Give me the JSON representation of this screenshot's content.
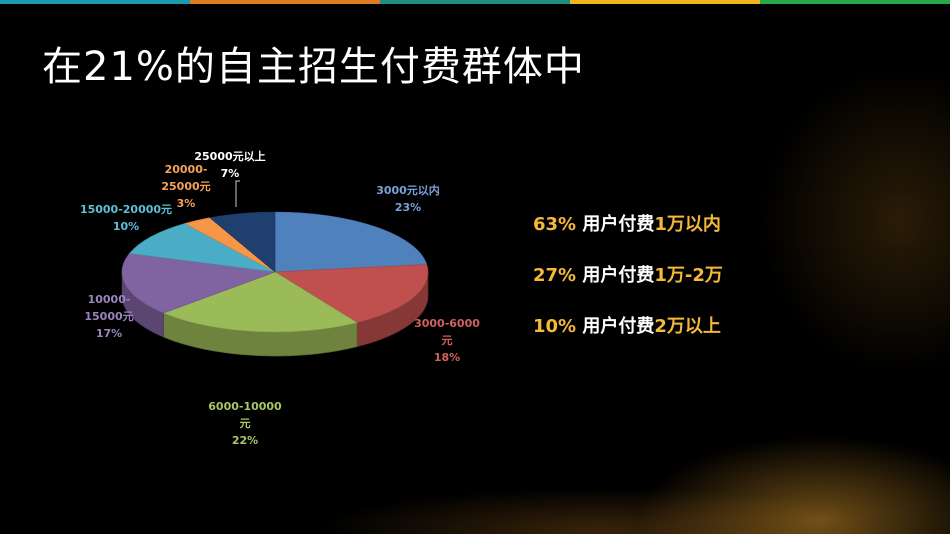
{
  "topbar_colors": [
    "#1b9bb0",
    "#e07b22",
    "#1e8f7f",
    "#f1b51c",
    "#27a84a"
  ],
  "title": "在21%的自主招生付费群体中",
  "chart_data": {
    "type": "pie",
    "title": "",
    "slices": [
      {
        "label_lines": [
          "3000元以内"
        ],
        "pct_label": "23%",
        "value": 23,
        "color": "#4f81bd",
        "label_color": "#7aa2d8"
      },
      {
        "label_lines": [
          "3000-6000",
          "元"
        ],
        "pct_label": "18%",
        "value": 18,
        "color": "#c0504d",
        "label_color": "#d0615e"
      },
      {
        "label_lines": [
          "6000-10000",
          "元"
        ],
        "pct_label": "22%",
        "value": 22,
        "color": "#9bbb59",
        "label_color": "#a9c766"
      },
      {
        "label_lines": [
          "10000-",
          "15000元"
        ],
        "pct_label": "17%",
        "value": 17,
        "color": "#8064a2",
        "label_color": "#9b84bd"
      },
      {
        "label_lines": [
          "15000-20000元"
        ],
        "pct_label": "10%",
        "value": 10,
        "color": "#4bacc6",
        "label_color": "#5fbfd6"
      },
      {
        "label_lines": [
          "20000-",
          "25000元"
        ],
        "pct_label": "3%",
        "value": 3,
        "color": "#f79646",
        "label_color": "#f7a35c"
      },
      {
        "label_lines": [
          "25000元以上"
        ],
        "pct_label": "7%",
        "value": 7,
        "color": "#1f3f6e",
        "label_color": "#ffffff"
      }
    ]
  },
  "summary": [
    {
      "pct": "63%",
      "prefix": " 用户付费",
      "highlight": "1万以内"
    },
    {
      "pct": "27%",
      "prefix": " 用户付费",
      "highlight": "1万-2万"
    },
    {
      "pct": "10%",
      "prefix": " 用户付费",
      "highlight": "2万以上"
    }
  ]
}
